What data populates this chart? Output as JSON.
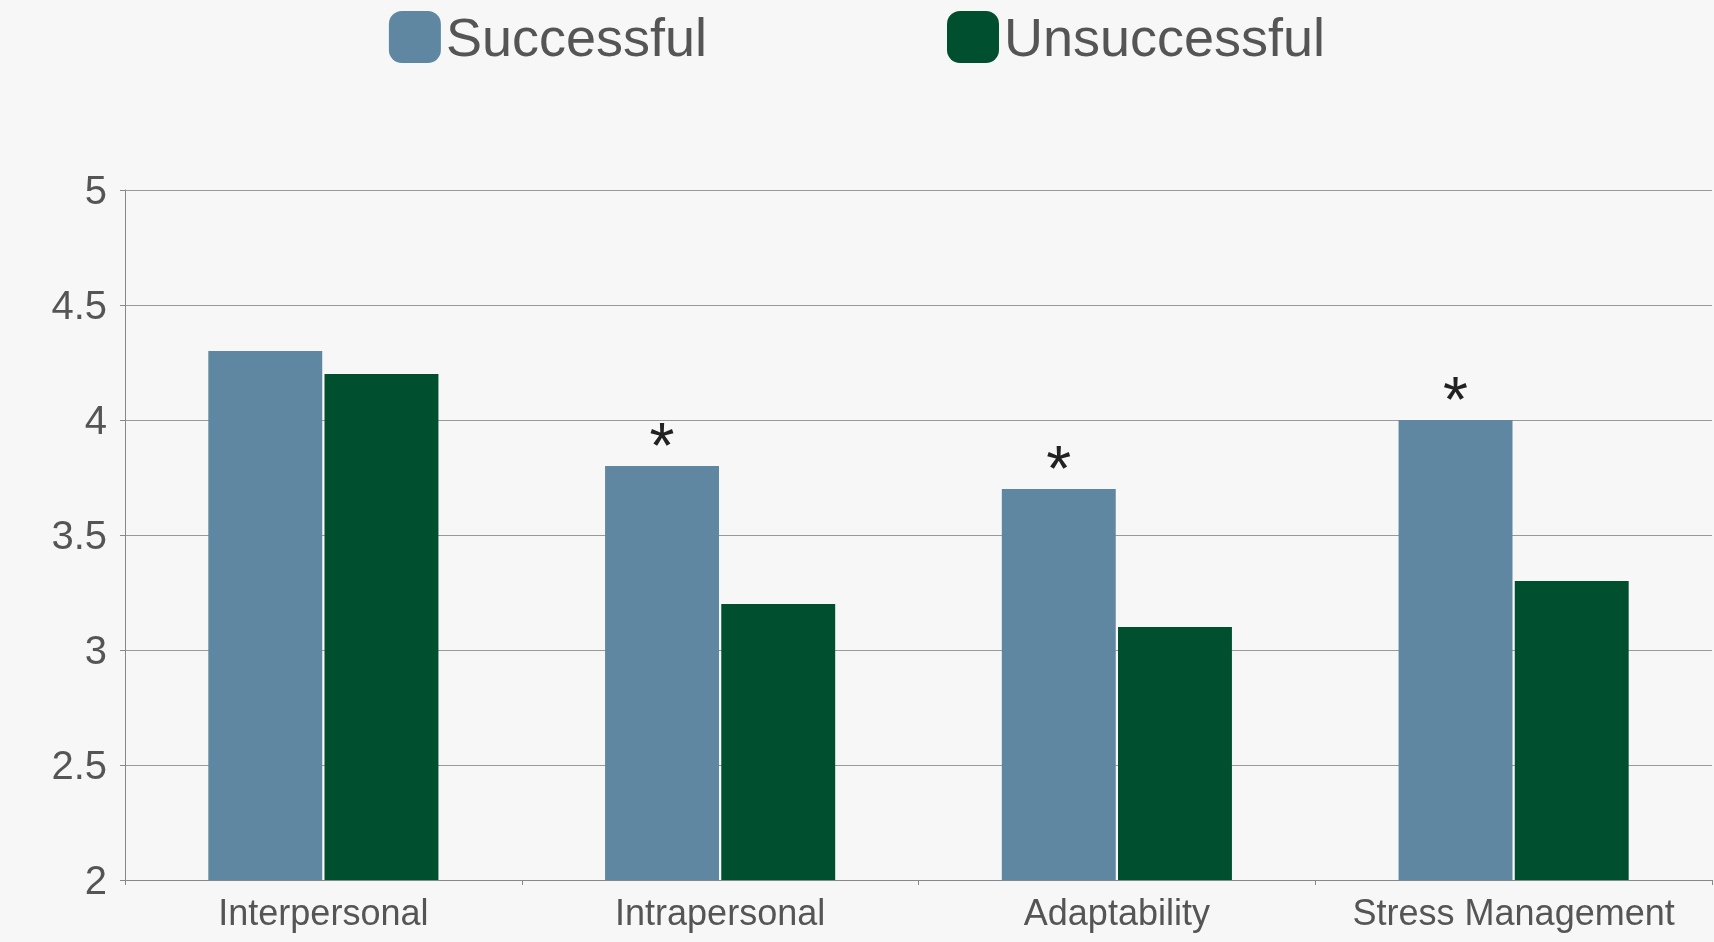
{
  "chart_data": {
    "type": "bar",
    "categories": [
      "Interpersonal",
      "Intrapersonal",
      "Adaptability",
      "Stress Management"
    ],
    "series": [
      {
        "name": "Successful",
        "color": "#5f87a1",
        "values": [
          4.3,
          3.8,
          3.7,
          4.0
        ]
      },
      {
        "name": "Unsuccessful",
        "color": "#00502f",
        "values": [
          4.2,
          3.2,
          3.1,
          3.3
        ]
      }
    ],
    "ylim": [
      2,
      5
    ],
    "yticks": [
      2,
      2.5,
      3,
      3.5,
      4,
      4.5,
      5
    ],
    "grid": "y",
    "legend": "top",
    "annotations": [
      {
        "text": "*",
        "x": "Intrapersonal",
        "y": 3.8
      },
      {
        "text": "*",
        "x": "Adaptability",
        "y": 3.7
      },
      {
        "text": "*",
        "x": "Stress Management",
        "y": 4.0
      }
    ]
  }
}
